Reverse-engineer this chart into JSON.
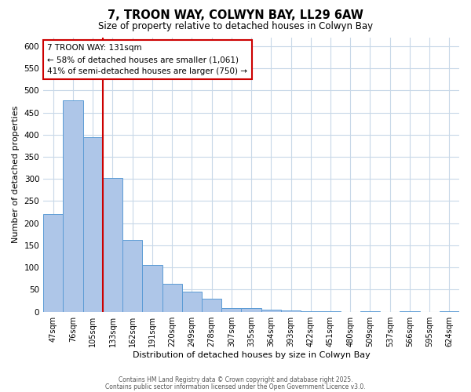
{
  "title": "7, TROON WAY, COLWYN BAY, LL29 6AW",
  "subtitle": "Size of property relative to detached houses in Colwyn Bay",
  "xlabel": "Distribution of detached houses by size in Colwyn Bay",
  "ylabel": "Number of detached properties",
  "bar_labels": [
    "47sqm",
    "76sqm",
    "105sqm",
    "133sqm",
    "162sqm",
    "191sqm",
    "220sqm",
    "249sqm",
    "278sqm",
    "307sqm",
    "335sqm",
    "364sqm",
    "393sqm",
    "422sqm",
    "451sqm",
    "480sqm",
    "509sqm",
    "537sqm",
    "566sqm",
    "595sqm",
    "624sqm"
  ],
  "bar_values": [
    220,
    478,
    395,
    302,
    163,
    106,
    64,
    46,
    30,
    8,
    8,
    5,
    3,
    1,
    1,
    0,
    1,
    0,
    1,
    0,
    1
  ],
  "bar_color": "#aec6e8",
  "bar_edge_color": "#5b9bd5",
  "vline_x_idx": 2.5,
  "vline_color": "#cc0000",
  "annotation_title": "7 TROON WAY: 131sqm",
  "annotation_line1": "← 58% of detached houses are smaller (1,061)",
  "annotation_line2": "41% of semi-detached houses are larger (750) →",
  "annotation_box_color": "#cc0000",
  "ylim": [
    0,
    620
  ],
  "yticks": [
    0,
    50,
    100,
    150,
    200,
    250,
    300,
    350,
    400,
    450,
    500,
    550,
    600
  ],
  "footer1": "Contains HM Land Registry data © Crown copyright and database right 2025.",
  "footer2": "Contains public sector information licensed under the Open Government Licence v3.0.",
  "background_color": "#ffffff",
  "grid_color": "#c8d8e8"
}
